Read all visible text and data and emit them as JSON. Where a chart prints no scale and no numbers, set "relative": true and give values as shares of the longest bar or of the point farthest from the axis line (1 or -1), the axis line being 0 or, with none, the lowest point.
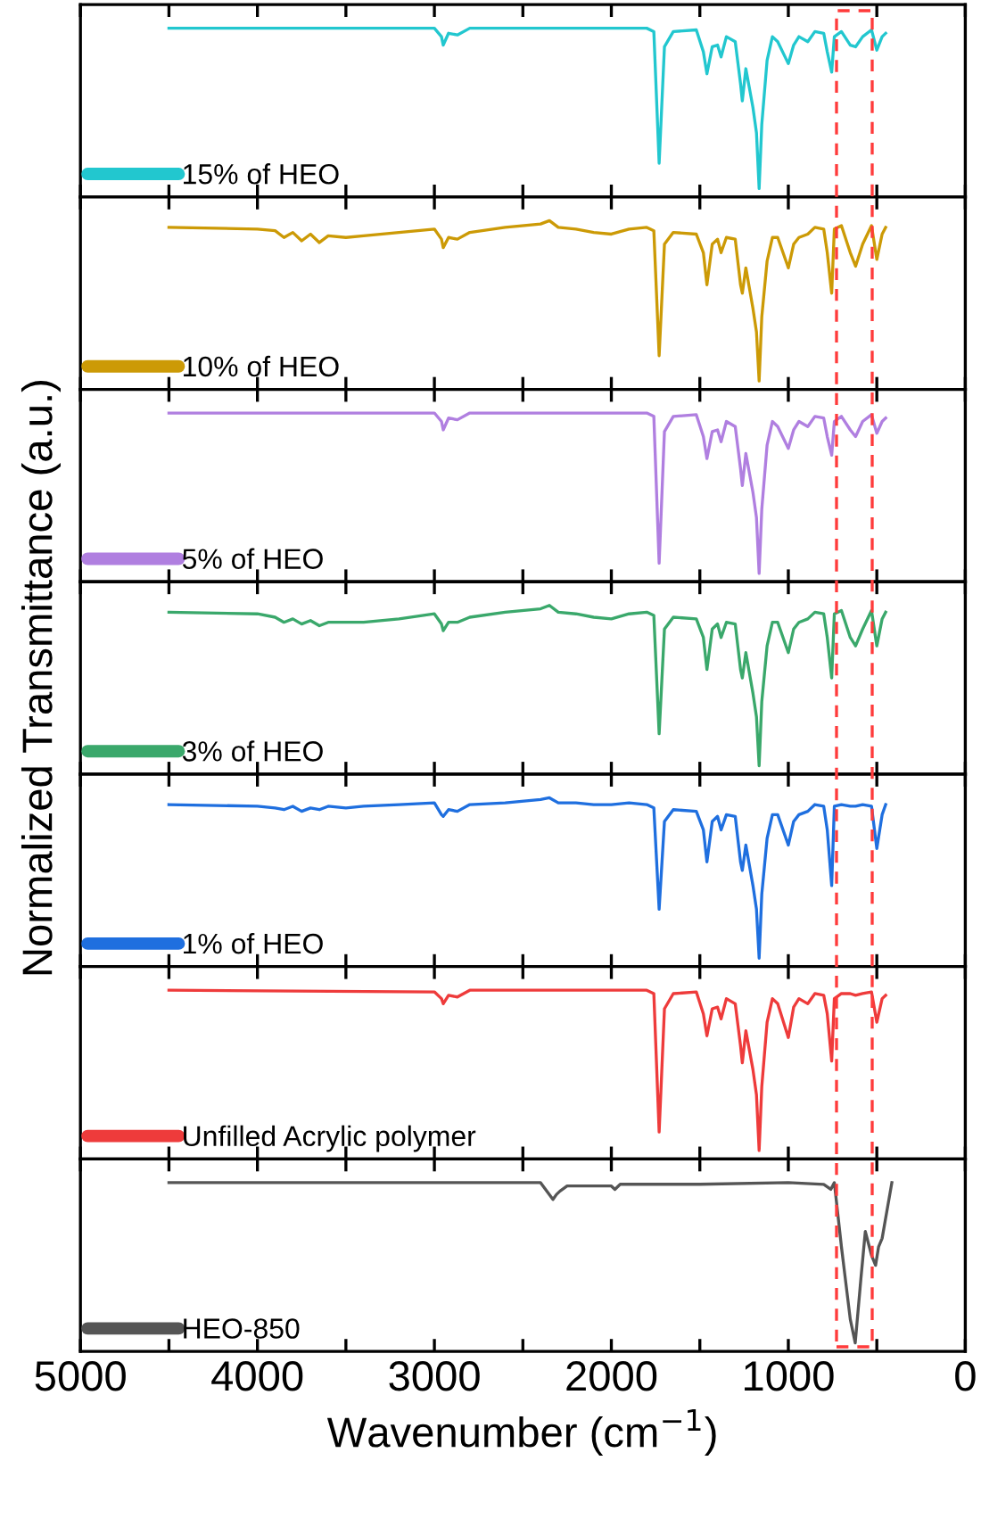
{
  "chart_data": [
    {
      "type": "line",
      "relative": true,
      "xlim": [
        5000,
        0
      ],
      "xticks": [
        5000,
        {
          "value": 4500,
          "label": null
        },
        4000,
        {
          "value": 3500,
          "label": null
        },
        3000,
        {
          "value": 2500,
          "label": null
        },
        2000,
        {
          "value": 1500,
          "label": null
        },
        1000,
        {
          "value": 500,
          "label": null
        },
        0
      ],
      "tick_labels": false,
      "legend": "bottom left",
      "series": [
        {
          "name": "15% of HEO",
          "color": "#22c7cf",
          "x": [
            4500,
            3000,
            2960,
            2950,
            2920,
            2870,
            2800,
            1800,
            1760,
            1730,
            1700,
            1650,
            1520,
            1480,
            1460,
            1430,
            1400,
            1380,
            1350,
            1300,
            1270,
            1260,
            1240,
            1200,
            1180,
            1165,
            1150,
            1120,
            1090,
            1060,
            1000,
            970,
            940,
            890,
            850,
            800,
            780,
            755,
            740,
            700,
            650,
            620,
            580,
            530,
            500,
            470,
            450
          ],
          "values": [
            1,
            1,
            0.95,
            0.9,
            0.97,
            0.96,
            1,
            1,
            0.98,
            0.2,
            0.89,
            0.98,
            0.99,
            0.86,
            0.73,
            0.89,
            0.9,
            0.83,
            0.95,
            0.92,
            0.67,
            0.57,
            0.76,
            0.53,
            0.38,
            0.05,
            0.43,
            0.81,
            0.95,
            0.92,
            0.79,
            0.9,
            0.95,
            0.92,
            0.98,
            0.97,
            0.86,
            0.74,
            0.95,
            0.98,
            0.9,
            0.89,
            0.95,
            0.99,
            0.87,
            0.95,
            0.97
          ]
        }
      ]
    },
    {
      "type": "line",
      "relative": true,
      "xlim": [
        5000,
        0
      ],
      "xticks": [
        5000,
        {
          "value": 4500,
          "label": null
        },
        4000,
        {
          "value": 3500,
          "label": null
        },
        3000,
        {
          "value": 2500,
          "label": null
        },
        2000,
        {
          "value": 1500,
          "label": null
        },
        1000,
        {
          "value": 500,
          "label": null
        },
        0
      ],
      "tick_labels": false,
      "legend": "bottom left",
      "series": [
        {
          "name": "10% of HEO",
          "color": "#cc9a06",
          "x": [
            4500,
            4000,
            3900,
            3850,
            3800,
            3750,
            3700,
            3650,
            3600,
            3500,
            3400,
            3200,
            3000,
            2960,
            2950,
            2920,
            2870,
            2800,
            2600,
            2400,
            2350,
            2300,
            2200,
            2100,
            2000,
            1900,
            1800,
            1760,
            1730,
            1700,
            1650,
            1520,
            1480,
            1460,
            1430,
            1400,
            1380,
            1350,
            1300,
            1270,
            1260,
            1240,
            1200,
            1180,
            1165,
            1150,
            1120,
            1090,
            1060,
            1000,
            970,
            940,
            890,
            850,
            800,
            780,
            755,
            740,
            700,
            650,
            620,
            580,
            530,
            500,
            470,
            450
          ],
          "values": [
            0.96,
            0.95,
            0.94,
            0.9,
            0.93,
            0.88,
            0.92,
            0.87,
            0.91,
            0.9,
            0.91,
            0.93,
            0.95,
            0.89,
            0.84,
            0.9,
            0.89,
            0.93,
            0.96,
            0.98,
            1.0,
            0.96,
            0.95,
            0.93,
            0.92,
            0.95,
            0.96,
            0.94,
            0.2,
            0.86,
            0.93,
            0.92,
            0.81,
            0.62,
            0.86,
            0.89,
            0.81,
            0.9,
            0.89,
            0.62,
            0.57,
            0.72,
            0.48,
            0.34,
            0.05,
            0.43,
            0.76,
            0.9,
            0.9,
            0.72,
            0.86,
            0.9,
            0.92,
            0.96,
            0.95,
            0.81,
            0.57,
            0.95,
            0.97,
            0.81,
            0.73,
            0.86,
            0.97,
            0.77,
            0.92,
            0.96
          ]
        }
      ]
    },
    {
      "type": "line",
      "relative": true,
      "xlim": [
        5000,
        0
      ],
      "xticks": [
        5000,
        {
          "value": 4500,
          "label": null
        },
        4000,
        {
          "value": 3500,
          "label": null
        },
        3000,
        {
          "value": 2500,
          "label": null
        },
        2000,
        {
          "value": 1500,
          "label": null
        },
        1000,
        {
          "value": 500,
          "label": null
        },
        0
      ],
      "tick_labels": false,
      "legend": "bottom left",
      "series": [
        {
          "name": "5% of HEO",
          "color": "#b07fe0",
          "x": [
            4500,
            3000,
            2960,
            2950,
            2920,
            2870,
            2800,
            1800,
            1760,
            1730,
            1700,
            1650,
            1520,
            1480,
            1460,
            1430,
            1400,
            1380,
            1350,
            1300,
            1270,
            1260,
            1240,
            1200,
            1180,
            1165,
            1150,
            1120,
            1090,
            1060,
            1000,
            970,
            940,
            890,
            850,
            800,
            780,
            755,
            740,
            700,
            650,
            620,
            580,
            530,
            500,
            470,
            450
          ],
          "values": [
            1,
            1,
            0.95,
            0.9,
            0.97,
            0.96,
            1,
            1,
            0.98,
            0.11,
            0.89,
            0.98,
            0.99,
            0.86,
            0.73,
            0.89,
            0.9,
            0.83,
            0.95,
            0.92,
            0.67,
            0.57,
            0.76,
            0.53,
            0.38,
            0.05,
            0.43,
            0.81,
            0.95,
            0.92,
            0.79,
            0.9,
            0.95,
            0.92,
            0.98,
            0.97,
            0.86,
            0.75,
            0.95,
            0.98,
            0.9,
            0.86,
            0.95,
            0.99,
            0.88,
            0.95,
            0.97
          ]
        }
      ]
    },
    {
      "type": "line",
      "relative": true,
      "xlim": [
        5000,
        0
      ],
      "xticks": [
        5000,
        {
          "value": 4500,
          "label": null
        },
        4000,
        {
          "value": 3500,
          "label": null
        },
        3000,
        {
          "value": 2500,
          "label": null
        },
        2000,
        {
          "value": 1500,
          "label": null
        },
        1000,
        {
          "value": 500,
          "label": null
        },
        0
      ],
      "tick_labels": false,
      "legend": "bottom left",
      "ylabel": "Normalized Transmittance (a.u.)",
      "series": [
        {
          "name": "3% of HEO",
          "color": "#3aa86b",
          "x": [
            4500,
            4000,
            3900,
            3850,
            3800,
            3750,
            3700,
            3650,
            3600,
            3500,
            3400,
            3200,
            3000,
            2960,
            2950,
            2920,
            2870,
            2800,
            2600,
            2400,
            2350,
            2300,
            2200,
            2100,
            2000,
            1900,
            1800,
            1760,
            1730,
            1700,
            1650,
            1520,
            1480,
            1460,
            1430,
            1400,
            1380,
            1350,
            1300,
            1270,
            1260,
            1240,
            1200,
            1180,
            1165,
            1150,
            1120,
            1090,
            1060,
            1000,
            970,
            940,
            890,
            850,
            800,
            780,
            755,
            740,
            700,
            650,
            620,
            580,
            530,
            500,
            470,
            450
          ],
          "values": [
            0.96,
            0.95,
            0.93,
            0.9,
            0.92,
            0.89,
            0.91,
            0.88,
            0.9,
            0.9,
            0.9,
            0.92,
            0.95,
            0.89,
            0.85,
            0.9,
            0.9,
            0.93,
            0.96,
            0.98,
            1.0,
            0.96,
            0.95,
            0.93,
            0.92,
            0.95,
            0.96,
            0.94,
            0.24,
            0.86,
            0.93,
            0.92,
            0.81,
            0.62,
            0.86,
            0.89,
            0.81,
            0.9,
            0.89,
            0.62,
            0.57,
            0.72,
            0.48,
            0.34,
            0.05,
            0.43,
            0.76,
            0.9,
            0.9,
            0.72,
            0.86,
            0.9,
            0.92,
            0.96,
            0.95,
            0.81,
            0.57,
            0.95,
            0.97,
            0.81,
            0.76,
            0.86,
            0.97,
            0.76,
            0.92,
            0.96
          ]
        }
      ]
    },
    {
      "type": "line",
      "relative": true,
      "xlim": [
        5000,
        0
      ],
      "xticks": [
        5000,
        {
          "value": 4500,
          "label": null
        },
        4000,
        {
          "value": 3500,
          "label": null
        },
        3000,
        {
          "value": 2500,
          "label": null
        },
        2000,
        {
          "value": 1500,
          "label": null
        },
        1000,
        {
          "value": 500,
          "label": null
        },
        0
      ],
      "tick_labels": false,
      "legend": "bottom left",
      "series": [
        {
          "name": "1% of HEO",
          "color": "#1f6fdf",
          "x": [
            4500,
            4000,
            3900,
            3850,
            3800,
            3750,
            3700,
            3650,
            3600,
            3500,
            3400,
            3200,
            3000,
            2960,
            2950,
            2920,
            2870,
            2800,
            2600,
            2400,
            2350,
            2300,
            2200,
            2100,
            2000,
            1900,
            1800,
            1760,
            1730,
            1700,
            1650,
            1520,
            1480,
            1460,
            1430,
            1400,
            1380,
            1350,
            1300,
            1270,
            1260,
            1240,
            1200,
            1180,
            1165,
            1150,
            1120,
            1090,
            1060,
            1000,
            970,
            940,
            890,
            850,
            800,
            780,
            755,
            740,
            700,
            650,
            620,
            580,
            530,
            500,
            470,
            450
          ],
          "values": [
            0.96,
            0.95,
            0.94,
            0.93,
            0.95,
            0.92,
            0.94,
            0.93,
            0.95,
            0.94,
            0.95,
            0.96,
            0.97,
            0.9,
            0.89,
            0.93,
            0.92,
            0.96,
            0.97,
            0.99,
            1.0,
            0.97,
            0.97,
            0.96,
            0.96,
            0.97,
            0.96,
            0.94,
            0.34,
            0.86,
            0.93,
            0.92,
            0.81,
            0.62,
            0.86,
            0.89,
            0.81,
            0.9,
            0.89,
            0.62,
            0.57,
            0.72,
            0.48,
            0.34,
            0.05,
            0.43,
            0.76,
            0.9,
            0.9,
            0.72,
            0.86,
            0.9,
            0.92,
            0.96,
            0.95,
            0.81,
            0.48,
            0.95,
            0.96,
            0.95,
            0.95,
            0.96,
            0.95,
            0.7,
            0.9,
            0.96
          ]
        }
      ]
    },
    {
      "type": "line",
      "relative": true,
      "xlim": [
        5000,
        0
      ],
      "xticks": [
        5000,
        {
          "value": 4500,
          "label": null
        },
        4000,
        {
          "value": 3500,
          "label": null
        },
        3000,
        {
          "value": 2500,
          "label": null
        },
        2000,
        {
          "value": 1500,
          "label": null
        },
        1000,
        {
          "value": 500,
          "label": null
        },
        0
      ],
      "tick_labels": false,
      "legend": "bottom left",
      "series": [
        {
          "name": "Unfilled Acrylic polymer",
          "color": "#ee3b3b",
          "x": [
            4500,
            3000,
            2960,
            2950,
            2920,
            2870,
            2800,
            1800,
            1760,
            1730,
            1700,
            1650,
            1520,
            1480,
            1460,
            1430,
            1400,
            1380,
            1350,
            1300,
            1270,
            1260,
            1240,
            1200,
            1180,
            1165,
            1150,
            1120,
            1090,
            1060,
            1000,
            970,
            940,
            890,
            850,
            800,
            780,
            755,
            740,
            700,
            650,
            620,
            580,
            530,
            500,
            470,
            450
          ],
          "values": [
            1,
            0.99,
            0.95,
            0.92,
            0.97,
            0.96,
            1,
            1,
            0.98,
            0.16,
            0.89,
            0.98,
            0.99,
            0.86,
            0.73,
            0.89,
            0.9,
            0.83,
            0.95,
            0.92,
            0.67,
            0.57,
            0.76,
            0.53,
            0.38,
            0.05,
            0.43,
            0.81,
            0.95,
            0.92,
            0.72,
            0.9,
            0.95,
            0.92,
            0.98,
            0.97,
            0.86,
            0.58,
            0.95,
            0.98,
            0.98,
            0.97,
            0.98,
            0.99,
            0.81,
            0.95,
            0.97
          ]
        }
      ]
    },
    {
      "type": "line",
      "relative": true,
      "xlim": [
        5000,
        0
      ],
      "xticks": [
        5000,
        {
          "value": 4500,
          "label": null
        },
        4000,
        {
          "value": 3500,
          "label": null
        },
        3000,
        {
          "value": 2500,
          "label": null
        },
        2000,
        {
          "value": 1500,
          "label": null
        },
        1000,
        {
          "value": 500,
          "label": null
        },
        0
      ],
      "tick_labels": "x",
      "legend": "bottom left",
      "xlabel": "Wavenumber (cm$^{−1}$)",
      "series": [
        {
          "name": "HEO-850",
          "color": "#555555",
          "x": [
            4500,
            3000,
            2400,
            2330,
            2310,
            2290,
            2250,
            2000,
            1980,
            1950,
            1500,
            1000,
            800,
            760,
            740,
            700,
            650,
            622,
            590,
            565,
            530,
            507,
            490,
            470,
            415
          ],
          "values": [
            1,
            1,
            1,
            0.9,
            0.93,
            0.95,
            0.98,
            0.98,
            0.96,
            0.99,
            0.99,
            1,
            0.99,
            0.96,
            1,
            0.62,
            0.19,
            0.05,
            0.43,
            0.71,
            0.57,
            0.51,
            0.62,
            0.67,
            1
          ]
        }
      ]
    }
  ]
}
